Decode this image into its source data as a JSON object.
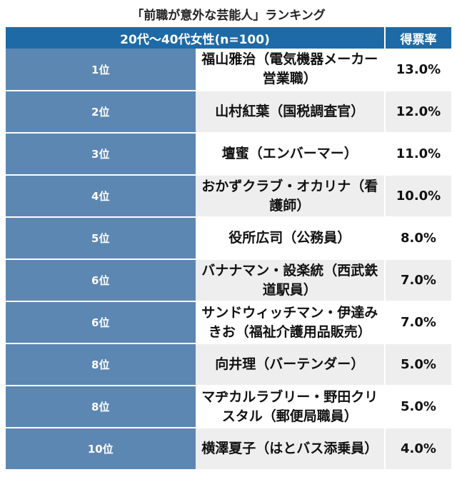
{
  "title": "「前職が意外な芸能人」ランキング",
  "header": {
    "main": "20代〜40代女性(n=100)",
    "value": "得票率"
  },
  "rows": [
    {
      "rank": "1位",
      "name": "福山雅治（電気機器メーカー営業職）",
      "value": "13.0%"
    },
    {
      "rank": "2位",
      "name": "山村紅葉（国税調査官）",
      "value": "12.0%"
    },
    {
      "rank": "3位",
      "name": "壇蜜（エンバーマー）",
      "value": "11.0%"
    },
    {
      "rank": "4位",
      "name": "おかずクラブ・オカリナ（看護師）",
      "value": "10.0%"
    },
    {
      "rank": "5位",
      "name": "役所広司（公務員）",
      "value": "8.0%"
    },
    {
      "rank": "6位",
      "name": "バナナマン・設楽統（西武鉄道駅員）",
      "value": "7.0%"
    },
    {
      "rank": "6位",
      "name": "サンドウィッチマン・伊達みきお（福祉介護用品販売）",
      "value": "7.0%"
    },
    {
      "rank": "8位",
      "name": "向井理（バーテンダー）",
      "value": "5.0%"
    },
    {
      "rank": "8位",
      "name": "マヂカルラブリー・野田クリスタル（郵便局職員）",
      "value": "5.0%"
    },
    {
      "rank": "10位",
      "name": "横澤夏子（はとバス添乗員）",
      "value": "4.0%"
    }
  ],
  "chart_data": {
    "type": "table",
    "title": "「前職が意外な芸能人」ランキング",
    "columns": [
      "20代〜40代女性(n=100)",
      "得票率"
    ],
    "categories": [
      "福山雅治（電気機器メーカー営業職）",
      "山村紅葉（国税調査官）",
      "壇蜜（エンバーマー）",
      "おかずクラブ・オカリナ（看護師）",
      "役所広司（公務員）",
      "バナナマン・設楽統（西武鉄道駅員）",
      "サンドウィッチマン・伊達みきお（福祉介護用品販売）",
      "向井理（バーテンダー）",
      "マヂカルラブリー・野田クリスタル（郵便局職員）",
      "横澤夏子（はとバス添乗員）"
    ],
    "ranks": [
      "1位",
      "2位",
      "3位",
      "4位",
      "5位",
      "6位",
      "6位",
      "8位",
      "8位",
      "10位"
    ],
    "values": [
      13.0,
      12.0,
      11.0,
      10.0,
      8.0,
      7.0,
      7.0,
      5.0,
      5.0,
      4.0
    ]
  },
  "colors": {
    "header_bg": "#1e6aa6",
    "rank_bg": "#5d87b3",
    "stripe_bg": "#eeeeee"
  }
}
